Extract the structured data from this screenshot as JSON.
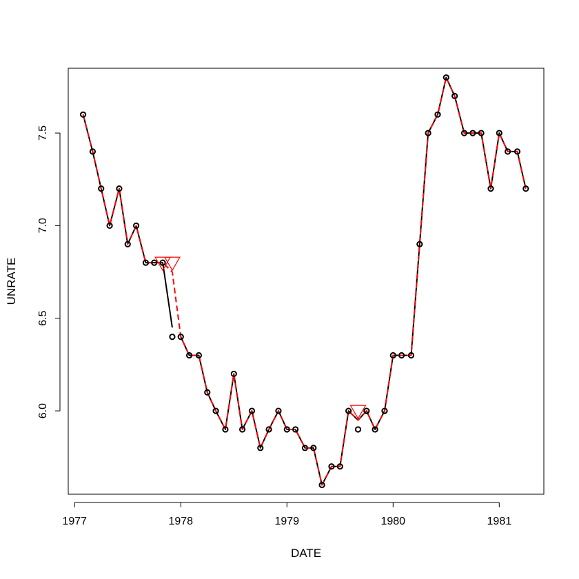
{
  "chart_data": {
    "type": "line",
    "title": "",
    "xlabel": "DATE",
    "ylabel": "UNRATE",
    "xlim": [
      1976.94,
      1981.42
    ],
    "ylim": [
      5.55,
      7.85
    ],
    "x_ticks": [
      {
        "value": 1977,
        "label": "1977"
      },
      {
        "value": 1978,
        "label": "1978"
      },
      {
        "value": 1979,
        "label": "1979"
      },
      {
        "value": 1980,
        "label": "1980"
      },
      {
        "value": 1981,
        "label": "1981"
      }
    ],
    "y_ticks": [
      {
        "value": 6.0,
        "label": "6.0"
      },
      {
        "value": 6.5,
        "label": "6.5"
      },
      {
        "value": 7.0,
        "label": "7.0"
      },
      {
        "value": 7.5,
        "label": "7.5"
      }
    ],
    "series": [
      {
        "style": "points",
        "color": "#000000",
        "x": [
          1977.08,
          1977.17,
          1977.25,
          1977.33,
          1977.42,
          1977.5,
          1977.58,
          1977.67,
          1977.75,
          1977.83,
          1977.92,
          1978.0,
          1978.08,
          1978.17,
          1978.25,
          1978.33,
          1978.42,
          1978.5,
          1978.58,
          1978.67,
          1978.75,
          1978.83,
          1978.92,
          1979.0,
          1979.08,
          1979.17,
          1979.25,
          1979.33,
          1979.42,
          1979.5,
          1979.58,
          1979.67,
          1979.75,
          1979.83,
          1979.92,
          1980.0,
          1980.08,
          1980.17,
          1980.25,
          1980.33,
          1980.42,
          1980.5,
          1980.58,
          1980.67,
          1980.75,
          1980.83,
          1980.92,
          1981.0,
          1981.08,
          1981.17,
          1981.25
        ],
        "y": [
          7.6,
          7.4,
          7.2,
          7.0,
          7.2,
          6.9,
          7.0,
          6.8,
          6.8,
          6.8,
          6.4,
          6.4,
          6.3,
          6.3,
          6.1,
          6.0,
          5.9,
          6.2,
          5.9,
          6.0,
          5.8,
          5.9,
          6.0,
          5.9,
          5.9,
          5.8,
          5.8,
          5.6,
          5.7,
          5.7,
          6.0,
          5.9,
          6.0,
          5.9,
          6.0,
          6.3,
          6.3,
          6.3,
          6.9,
          7.5,
          7.6,
          7.8,
          7.7,
          7.5,
          7.5,
          7.5,
          7.2,
          7.5,
          7.4,
          7.4,
          7.2
        ]
      },
      {
        "style": "solid",
        "color": "#000000",
        "x": [
          1977.08,
          1977.17,
          1977.25,
          1977.33,
          1977.42,
          1977.5,
          1977.58,
          1977.67,
          1977.75,
          1977.83,
          1977.92
        ],
        "y": [
          7.6,
          7.4,
          7.2,
          7.0,
          7.2,
          6.9,
          7.0,
          6.8,
          6.8,
          6.8,
          6.45
        ]
      },
      {
        "style": "solid",
        "color": "#000000",
        "x": [
          1978.0,
          1978.08,
          1978.17,
          1978.25,
          1978.33,
          1978.42,
          1978.5,
          1978.58,
          1978.67,
          1978.75,
          1978.83,
          1978.92,
          1979.0,
          1979.08,
          1979.17,
          1979.25,
          1979.33,
          1979.42,
          1979.5,
          1979.58,
          1979.67
        ],
        "y": [
          6.4,
          6.3,
          6.3,
          6.1,
          6.0,
          5.9,
          6.2,
          5.9,
          6.0,
          5.8,
          5.9,
          6.0,
          5.9,
          5.9,
          5.8,
          5.8,
          5.6,
          5.7,
          5.7,
          6.0,
          5.95
        ]
      },
      {
        "style": "solid",
        "color": "#000000",
        "x": [
          1979.67,
          1979.75,
          1979.83,
          1979.92,
          1980.0,
          1980.08,
          1980.17,
          1980.25,
          1980.33,
          1980.42,
          1980.5,
          1980.58,
          1980.67,
          1980.75,
          1980.83,
          1980.92,
          1981.0,
          1981.08,
          1981.17,
          1981.25
        ],
        "y": [
          5.95,
          6.0,
          5.9,
          6.0,
          6.3,
          6.3,
          6.3,
          6.9,
          7.5,
          7.6,
          7.8,
          7.7,
          7.5,
          7.5,
          7.5,
          7.2,
          7.5,
          7.4,
          7.4,
          7.2
        ]
      },
      {
        "style": "dashed",
        "color": "#ff0000",
        "x": [
          1977.08,
          1977.17,
          1977.25,
          1977.33,
          1977.42,
          1977.5,
          1977.58,
          1977.67,
          1977.75,
          1977.83,
          1977.92,
          1978.0,
          1978.08,
          1978.17,
          1978.25,
          1978.33,
          1978.42,
          1978.5,
          1978.58,
          1978.67,
          1978.75,
          1978.83,
          1978.92,
          1979.0,
          1979.08,
          1979.17,
          1979.25,
          1979.33,
          1979.42,
          1979.5,
          1979.58,
          1979.67,
          1979.75,
          1979.83,
          1979.92,
          1980.0,
          1980.08,
          1980.17,
          1980.25,
          1980.33,
          1980.42,
          1980.5,
          1980.58,
          1980.67,
          1980.75,
          1980.83,
          1980.92,
          1981.0,
          1981.08,
          1981.17,
          1981.25
        ],
        "y": [
          7.6,
          7.4,
          7.2,
          7.0,
          7.2,
          6.9,
          7.0,
          6.8,
          6.8,
          6.8,
          6.75,
          6.4,
          6.3,
          6.3,
          6.1,
          6.0,
          5.9,
          6.2,
          5.9,
          6.0,
          5.8,
          5.9,
          6.0,
          5.9,
          5.9,
          5.8,
          5.8,
          5.6,
          5.7,
          5.7,
          6.0,
          5.95,
          6.0,
          5.9,
          6.0,
          6.3,
          6.3,
          6.3,
          6.9,
          7.5,
          7.6,
          7.8,
          7.7,
          7.5,
          7.5,
          7.5,
          7.2,
          7.5,
          7.4,
          7.4,
          7.2
        ]
      }
    ],
    "markers": {
      "shape": "open-triangle-down",
      "color": "#ff0000",
      "points": [
        {
          "x": 1977.83,
          "y": 6.8
        },
        {
          "x": 1977.92,
          "y": 6.8
        },
        {
          "x": 1979.67,
          "y": 6.0
        }
      ]
    }
  }
}
